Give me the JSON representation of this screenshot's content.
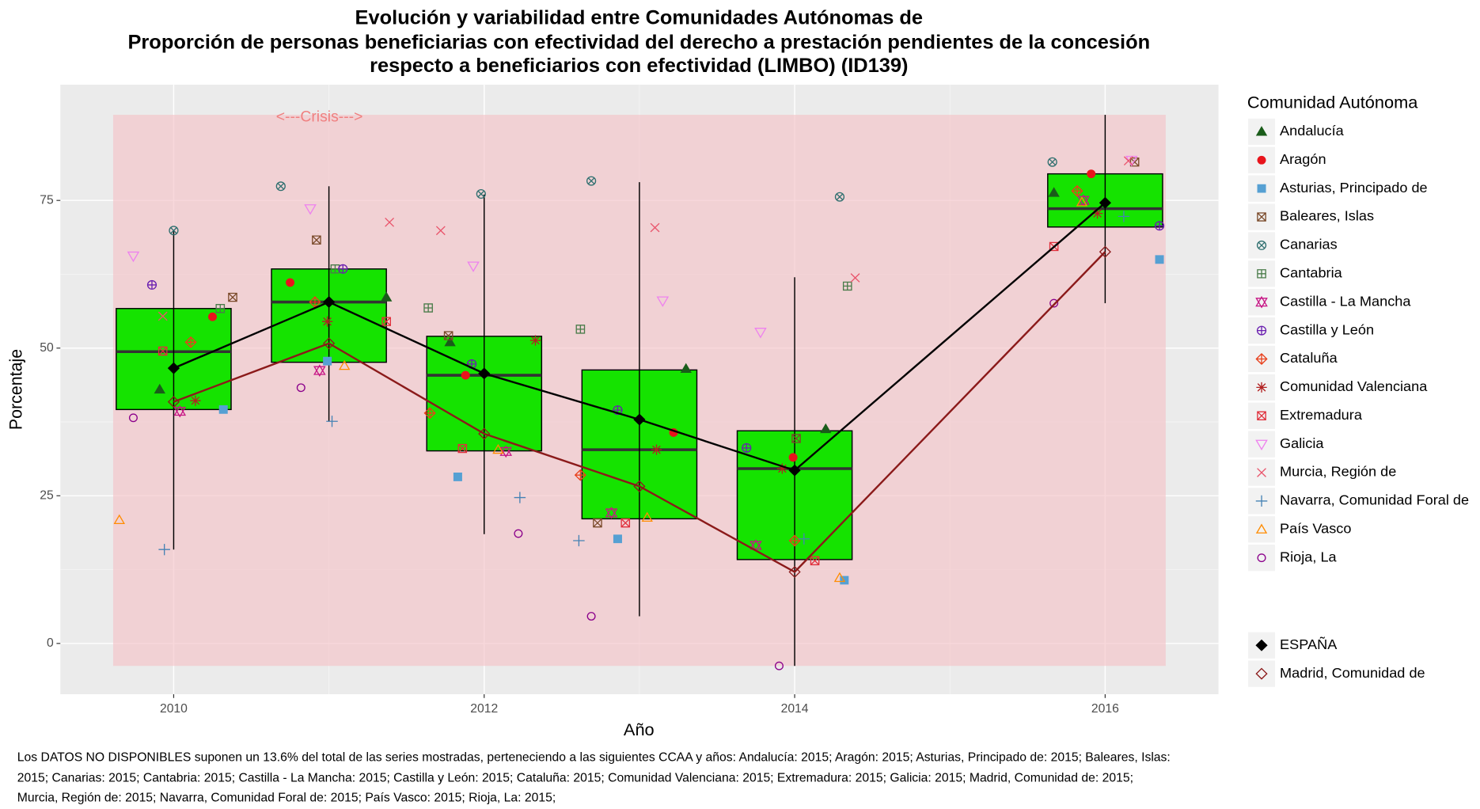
{
  "chart_data": {
    "type": "box",
    "title": [
      "Evolución y variabilidad entre Comunidades Autónomas de",
      "Proporción de personas beneficiarias con efectividad del derecho a prestación pendientes de la concesión",
      "respecto a beneficiarios con efectividad (LIMBO) (ID139)"
    ],
    "x_label": "Año",
    "y_label": "Porcentaje",
    "legend_title": "Comunidad Autónoma",
    "caption": [
      "Los DATOS NO DISPONIBLES suponen un 13.6% del total de las series mostradas, perteneciendo a las siguientes CCAA y años: Andalucía: 2015; Aragón: 2015; Asturias, Principado de: 2015; Baleares, Islas:",
      " 2015; Canarias: 2015; Cantabria: 2015; Castilla - La Mancha: 2015; Castilla y León: 2015; Cataluña: 2015; Comunidad Valenciana: 2015; Extremadura: 2015; Galicia: 2015; Madrid, Comunidad de: 2015;",
      " Murcia, Región de: 2015; Navarra, Comunidad Foral de: 2015; País Vasco: 2015; Rioja, La: 2015;"
    ],
    "xlim": [
      2009.27,
      2016.73
    ],
    "ylim": [
      -8.6,
      94.6
    ],
    "xticks": [
      2010,
      2012,
      2014,
      2016
    ],
    "yticks": [
      0,
      25,
      50,
      75
    ],
    "grid": true,
    "shade": {
      "label": "<---Crisis--->",
      "xlim": [
        2009.61,
        2016.39
      ],
      "ylim": [
        -3.8,
        89.5
      ],
      "color": "#f4c3c8"
    },
    "box_color": "#15e300",
    "box_width": 0.74,
    "boxes": [
      {
        "x": 2010,
        "low": 15.9,
        "q1": 39.6,
        "median": 49.4,
        "q3": 56.7,
        "high": 69.9
      },
      {
        "x": 2011,
        "low": 37.6,
        "q1": 47.6,
        "median": 57.8,
        "q3": 63.4,
        "high": 77.4
      },
      {
        "x": 2012,
        "low": 18.5,
        "q1": 32.6,
        "median": 45.4,
        "q3": 52.0,
        "high": 76.0
      },
      {
        "x": 2013,
        "low": 4.6,
        "q1": 21.1,
        "median": 32.8,
        "q3": 46.3,
        "high": 78.1
      },
      {
        "x": 2014,
        "low": -3.8,
        "q1": 14.2,
        "median": 29.6,
        "q3": 36.0,
        "high": 62.0
      },
      {
        "x": 2016,
        "low": 57.6,
        "q1": 70.5,
        "median": 73.6,
        "q3": 79.5,
        "high": 89.5
      }
    ],
    "series": [
      {
        "name": "Andalucía",
        "color": "#1a5c1a",
        "marker": "triangle-filled",
        "x": [
          2009.91,
          2011.37,
          2011.78,
          2013.3,
          2014.2,
          2015.67
        ],
        "values": [
          43.0,
          58.6,
          51.0,
          46.5,
          36.3,
          76.3
        ]
      },
      {
        "name": "Aragón",
        "color": "#e8141c",
        "marker": "circle-filled",
        "x": [
          2010.25,
          2010.75,
          2011.88,
          2013.22,
          2013.99,
          2015.91
        ],
        "values": [
          55.3,
          61.1,
          45.4,
          35.7,
          31.5,
          79.5
        ]
      },
      {
        "name": "Asturias, Principado de",
        "color": "#56a0d3",
        "marker": "square-filled",
        "x": [
          2010.32,
          2010.99,
          2011.83,
          2012.86,
          2014.32,
          2016.35
        ],
        "values": [
          39.6,
          47.8,
          28.2,
          17.7,
          10.7,
          65.0
        ]
      },
      {
        "name": "Baleares, Islas",
        "color": "#7a4a2a",
        "marker": "boxx",
        "x": [
          2010.38,
          2010.92,
          2011.77,
          2012.73,
          2014.01,
          2016.19
        ],
        "values": [
          58.6,
          68.3,
          52.1,
          20.4,
          34.7,
          81.5
        ]
      },
      {
        "name": "Canarias",
        "color": "#2f6f6f",
        "marker": "circlex",
        "x": [
          2010.0,
          2010.69,
          2011.98,
          2012.69,
          2014.29,
          2015.66
        ],
        "values": [
          69.9,
          77.4,
          76.1,
          78.3,
          75.6,
          81.5
        ]
      },
      {
        "name": "Cantabria",
        "color": "#4a7c4a",
        "marker": "boxplus",
        "x": [
          2010.3,
          2011.04,
          2011.64,
          2012.62,
          2014.34
        ],
        "values": [
          56.7,
          63.4,
          56.8,
          53.2,
          60.5
        ]
      },
      {
        "name": "Castilla - La Mancha",
        "color": "#c71585",
        "marker": "star6",
        "x": [
          2010.04,
          2010.94,
          2012.14,
          2012.82,
          2013.75,
          2015.86
        ],
        "values": [
          39.3,
          46.2,
          32.5,
          22.1,
          16.6,
          75.0
        ]
      },
      {
        "name": "Castilla y León",
        "color": "#6a1fb0",
        "marker": "circleplus",
        "x": [
          2009.86,
          2011.09,
          2011.92,
          2012.86,
          2013.69,
          2016.35
        ],
        "values": [
          60.7,
          63.4,
          47.3,
          39.5,
          33.1,
          70.7
        ]
      },
      {
        "name": "Cataluña",
        "color": "#e8401c",
        "marker": "diamondplus",
        "x": [
          2010.11,
          2010.91,
          2011.65,
          2012.62,
          2014.0,
          2015.82
        ],
        "values": [
          51.0,
          57.8,
          39.0,
          28.5,
          17.4,
          76.6
        ]
      },
      {
        "name": "Comunidad Valenciana",
        "color": "#b22222",
        "marker": "asterisk",
        "x": [
          2010.14,
          2010.99,
          2012.33,
          2013.11,
          2013.92,
          2015.95
        ],
        "values": [
          41.1,
          54.5,
          51.3,
          32.8,
          29.6,
          72.8
        ]
      },
      {
        "name": "Extremadura",
        "color": "#e0303c",
        "marker": "boxx",
        "x": [
          2009.93,
          2011.37,
          2011.86,
          2012.91,
          2014.13,
          2015.67
        ],
        "values": [
          49.5,
          54.5,
          33.0,
          20.4,
          14.0,
          67.2
        ]
      },
      {
        "name": "Galicia",
        "color": "#ee82ee",
        "marker": "triangledown",
        "x": [
          2009.74,
          2010.88,
          2011.93,
          2013.15,
          2013.78,
          2016.17
        ],
        "values": [
          65.6,
          73.6,
          63.9,
          58.0,
          52.7,
          81.8
        ]
      },
      {
        "name": "Murcia, Región de",
        "color": "#e9546b",
        "marker": "x",
        "x": [
          2009.93,
          2011.39,
          2011.72,
          2013.1,
          2014.39,
          2016.15
        ],
        "values": [
          55.4,
          71.3,
          69.9,
          70.4,
          61.9,
          81.7
        ]
      },
      {
        "name": "Navarra, Comunidad Foral de",
        "color": "#4682b4",
        "marker": "plus",
        "x": [
          2009.94,
          2011.02,
          2012.23,
          2012.61,
          2014.06,
          2016.12
        ],
        "values": [
          15.9,
          37.6,
          24.7,
          17.4,
          17.7,
          72.3
        ]
      },
      {
        "name": "País Vasco",
        "color": "#ff8c00",
        "marker": "triangle",
        "x": [
          2009.65,
          2011.1,
          2012.09,
          2013.05,
          2014.29,
          2015.85
        ],
        "values": [
          20.9,
          47.0,
          32.8,
          21.3,
          11.1,
          74.7
        ]
      },
      {
        "name": "Rioja, La",
        "color": "#8b008b",
        "marker": "circle",
        "x": [
          2009.74,
          2010.82,
          2012.22,
          2012.69,
          2013.9,
          2015.67
        ],
        "values": [
          38.2,
          43.3,
          18.6,
          4.6,
          -3.8,
          57.6
        ]
      }
    ],
    "lines": [
      {
        "name": "ESPAÑA",
        "color": "#000000",
        "marker": "diamond-filled",
        "x": [
          2010,
          2011,
          2012,
          2013,
          2014,
          2016
        ],
        "values": [
          46.6,
          57.8,
          45.7,
          37.9,
          29.3,
          74.6
        ]
      },
      {
        "name": "Madrid, Comunidad de",
        "color": "#8b1a1a",
        "marker": "diamond",
        "x": [
          2010,
          2011,
          2012,
          2013,
          2014,
          2016
        ],
        "values": [
          40.9,
          50.8,
          35.5,
          26.6,
          12.1,
          66.3
        ]
      }
    ]
  }
}
